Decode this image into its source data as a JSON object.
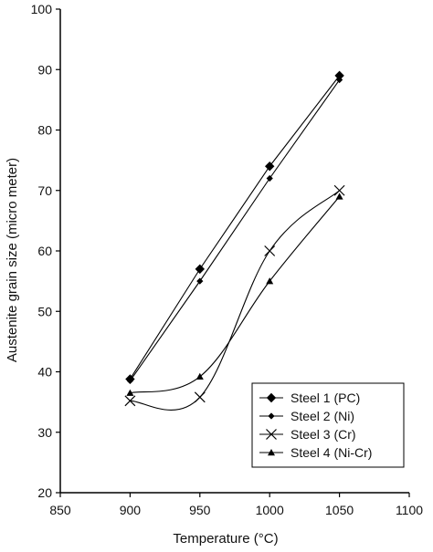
{
  "chart_data": {
    "type": "line",
    "title": "",
    "xlabel": "Temperature (°C)",
    "ylabel": "Austenite grain size (micro meter)",
    "xlim": [
      850,
      1100
    ],
    "ylim": [
      20,
      100
    ],
    "xticks": [
      850,
      900,
      950,
      1000,
      1050,
      1100
    ],
    "yticks": [
      20,
      30,
      40,
      50,
      60,
      70,
      80,
      90,
      100
    ],
    "grid": false,
    "legend_position": "bottom-right",
    "series": [
      {
        "name": "Steel 1 (PC)",
        "marker": "diamond-large",
        "x": [
          900,
          950,
          1000,
          1050
        ],
        "y": [
          38.8,
          57,
          74,
          89
        ]
      },
      {
        "name": "Steel 2 (Ni)",
        "marker": "diamond-small",
        "x": [
          900,
          950,
          1000,
          1050
        ],
        "y": [
          38.5,
          55,
          72,
          88.3
        ]
      },
      {
        "name": "Steel 3 (Cr)",
        "marker": "x",
        "x": [
          900,
          950,
          1000,
          1050
        ],
        "y": [
          35.2,
          35.8,
          60,
          70
        ]
      },
      {
        "name": "Steel 4 (Ni-Cr)",
        "marker": "triangle",
        "x": [
          900,
          950,
          1000,
          1050
        ],
        "y": [
          36.5,
          39.2,
          55,
          69
        ]
      }
    ]
  }
}
